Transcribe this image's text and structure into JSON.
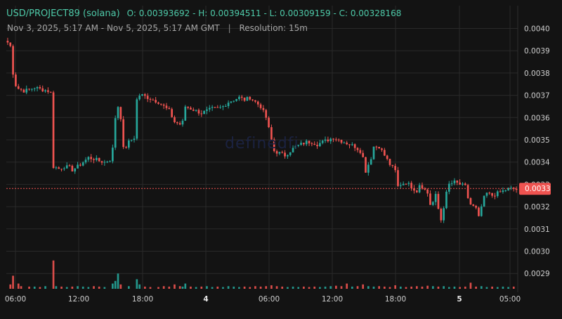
{
  "header": {
    "symbol": "USD/PROJECT89 (solana)",
    "ohlc": "O: 0.00393692 - H: 0.00394511 - L: 0.00309159 - C: 0.00328168",
    "range": "Nov 3, 2025, 5:17 AM - Nov 5, 2025, 5:17 AM GMT",
    "separator": "|",
    "resolution": "Resolution: 15m"
  },
  "watermark": "definedfi",
  "colors": {
    "up": "#26a69a",
    "down": "#ef5350",
    "background": "#131313",
    "grid": "#2a2a2a",
    "price_tag": "#ef5350"
  },
  "chart_data": {
    "type": "candlestick",
    "ylim": [
      0.00284,
      0.0041
    ],
    "y_ticks": [
      "0.0040",
      "0.0039",
      "0.0038",
      "0.0037",
      "0.0036",
      "0.0035",
      "0.0034",
      "0.0033",
      "0.0032",
      "0.0031",
      "0.0030",
      "0.0029"
    ],
    "x_ticks": [
      "06:00",
      "12:00",
      "18:00",
      "4",
      "06:00",
      "12:00",
      "18:00",
      "5",
      "05:00"
    ],
    "last_price": 0.00328168,
    "last_price_label": "0.0033",
    "grid": true,
    "ohlc_path": [
      [
        0,
        0.003937
      ],
      [
        1,
        0.00392
      ],
      [
        2,
        0.0038
      ],
      [
        3,
        0.003745
      ],
      [
        4,
        0.00373
      ],
      [
        6,
        0.00372
      ],
      [
        8,
        0.003725
      ],
      [
        10,
        0.003735
      ],
      [
        13,
        0.003725
      ],
      [
        15,
        0.00372
      ],
      [
        16,
        0.00371
      ],
      [
        17,
        0.00338
      ],
      [
        19,
        0.00337
      ],
      [
        21,
        0.00338
      ],
      [
        23,
        0.003375
      ],
      [
        24,
        0.003365
      ],
      [
        26,
        0.00338
      ],
      [
        28,
        0.0034
      ],
      [
        30,
        0.00342
      ],
      [
        32,
        0.003415
      ],
      [
        34,
        0.003405
      ],
      [
        36,
        0.0034
      ],
      [
        38,
        0.00341
      ],
      [
        39,
        0.00346
      ],
      [
        40,
        0.0036
      ],
      [
        41,
        0.00365
      ],
      [
        42,
        0.0036
      ],
      [
        43,
        0.00346
      ],
      [
        44,
        0.00347
      ],
      [
        45,
        0.00349
      ],
      [
        46,
        0.0035
      ],
      [
        47,
        0.00351
      ],
      [
        48,
        0.00368
      ],
      [
        49,
        0.0037
      ],
      [
        50,
        0.0037
      ],
      [
        52,
        0.00369
      ],
      [
        54,
        0.00368
      ],
      [
        56,
        0.00367
      ],
      [
        58,
        0.00365
      ],
      [
        60,
        0.00363
      ],
      [
        62,
        0.00358
      ],
      [
        64,
        0.00357
      ],
      [
        65,
        0.00358
      ],
      [
        66,
        0.00365
      ],
      [
        68,
        0.00364
      ],
      [
        70,
        0.00363
      ],
      [
        72,
        0.00362
      ],
      [
        74,
        0.00363
      ],
      [
        76,
        0.00364
      ],
      [
        78,
        0.00364
      ],
      [
        80,
        0.00365
      ],
      [
        82,
        0.00367
      ],
      [
        84,
        0.00368
      ],
      [
        86,
        0.00369
      ],
      [
        88,
        0.00368
      ],
      [
        90,
        0.00369
      ],
      [
        92,
        0.00367
      ],
      [
        94,
        0.00365
      ],
      [
        96,
        0.0036
      ],
      [
        98,
        0.0035
      ],
      [
        99,
        0.00345
      ],
      [
        101,
        0.00344
      ],
      [
        103,
        0.00343
      ],
      [
        105,
        0.00345
      ],
      [
        107,
        0.00347
      ],
      [
        109,
        0.00348
      ],
      [
        111,
        0.00349
      ],
      [
        113,
        0.00349
      ],
      [
        115,
        0.00348
      ],
      [
        117,
        0.00349
      ],
      [
        119,
        0.0035
      ],
      [
        121,
        0.00351
      ],
      [
        123,
        0.0035
      ],
      [
        125,
        0.00349
      ],
      [
        127,
        0.00348
      ],
      [
        129,
        0.00347
      ],
      [
        131,
        0.00345
      ],
      [
        132,
        0.00342
      ],
      [
        133,
        0.00336
      ],
      [
        134,
        0.00339
      ],
      [
        135,
        0.00342
      ],
      [
        136,
        0.00347
      ],
      [
        138,
        0.00347
      ],
      [
        140,
        0.00343
      ],
      [
        142,
        0.00339
      ],
      [
        144,
        0.00336
      ],
      [
        145,
        0.00329
      ],
      [
        146,
        0.0033
      ],
      [
        148,
        0.00331
      ],
      [
        150,
        0.00329
      ],
      [
        152,
        0.00327
      ],
      [
        153,
        0.0033
      ],
      [
        154,
        0.00329
      ],
      [
        156,
        0.00326
      ],
      [
        157,
        0.00321
      ],
      [
        158,
        0.00322
      ],
      [
        159,
        0.00325
      ],
      [
        160,
        0.00319
      ],
      [
        161,
        0.00314
      ],
      [
        162,
        0.0032
      ],
      [
        163,
        0.00326
      ],
      [
        164,
        0.0033
      ],
      [
        166,
        0.00331
      ],
      [
        168,
        0.0033
      ],
      [
        170,
        0.00329
      ],
      [
        171,
        0.00324
      ],
      [
        172,
        0.00321
      ],
      [
        174,
        0.00319
      ],
      [
        175,
        0.00315
      ],
      [
        176,
        0.0032
      ],
      [
        177,
        0.00324
      ],
      [
        178,
        0.00326
      ],
      [
        180,
        0.00325
      ],
      [
        182,
        0.00326
      ],
      [
        184,
        0.00327
      ],
      [
        186,
        0.00328
      ],
      [
        188,
        0.00328
      ]
    ],
    "volume": [
      [
        1,
        0.1
      ],
      [
        2,
        0.3
      ],
      [
        4,
        0.12
      ],
      [
        5,
        0.06
      ],
      [
        8,
        0.05
      ],
      [
        10,
        0.05
      ],
      [
        12,
        0.04
      ],
      [
        14,
        0.06
      ],
      [
        17,
        0.65
      ],
      [
        18,
        0.06
      ],
      [
        20,
        0.05
      ],
      [
        22,
        0.04
      ],
      [
        24,
        0.05
      ],
      [
        26,
        0.06
      ],
      [
        28,
        0.05
      ],
      [
        30,
        0.04
      ],
      [
        32,
        0.06
      ],
      [
        34,
        0.05
      ],
      [
        36,
        0.04
      ],
      [
        39,
        0.12
      ],
      [
        40,
        0.18
      ],
      [
        41,
        0.35
      ],
      [
        42,
        0.1
      ],
      [
        45,
        0.06
      ],
      [
        48,
        0.22
      ],
      [
        49,
        0.1
      ],
      [
        51,
        0.05
      ],
      [
        53,
        0.04
      ],
      [
        56,
        0.04
      ],
      [
        58,
        0.06
      ],
      [
        60,
        0.05
      ],
      [
        62,
        0.1
      ],
      [
        64,
        0.06
      ],
      [
        65,
        0.05
      ],
      [
        66,
        0.12
      ],
      [
        68,
        0.05
      ],
      [
        70,
        0.04
      ],
      [
        72,
        0.05
      ],
      [
        74,
        0.06
      ],
      [
        76,
        0.04
      ],
      [
        78,
        0.05
      ],
      [
        80,
        0.04
      ],
      [
        82,
        0.06
      ],
      [
        84,
        0.05
      ],
      [
        86,
        0.04
      ],
      [
        88,
        0.05
      ],
      [
        90,
        0.04
      ],
      [
        92,
        0.06
      ],
      [
        94,
        0.05
      ],
      [
        96,
        0.06
      ],
      [
        98,
        0.08
      ],
      [
        100,
        0.06
      ],
      [
        102,
        0.05
      ],
      [
        104,
        0.04
      ],
      [
        106,
        0.05
      ],
      [
        108,
        0.04
      ],
      [
        110,
        0.05
      ],
      [
        112,
        0.04
      ],
      [
        114,
        0.05
      ],
      [
        116,
        0.04
      ],
      [
        118,
        0.05
      ],
      [
        120,
        0.06
      ],
      [
        122,
        0.07
      ],
      [
        124,
        0.06
      ],
      [
        126,
        0.12
      ],
      [
        128,
        0.05
      ],
      [
        130,
        0.06
      ],
      [
        132,
        0.1
      ],
      [
        134,
        0.06
      ],
      [
        136,
        0.05
      ],
      [
        138,
        0.06
      ],
      [
        140,
        0.05
      ],
      [
        142,
        0.04
      ],
      [
        144,
        0.08
      ],
      [
        146,
        0.05
      ],
      [
        148,
        0.04
      ],
      [
        150,
        0.05
      ],
      [
        152,
        0.06
      ],
      [
        154,
        0.05
      ],
      [
        156,
        0.07
      ],
      [
        158,
        0.06
      ],
      [
        160,
        0.05
      ],
      [
        162,
        0.06
      ],
      [
        164,
        0.04
      ],
      [
        166,
        0.05
      ],
      [
        168,
        0.04
      ],
      [
        170,
        0.05
      ],
      [
        172,
        0.14
      ],
      [
        174,
        0.05
      ],
      [
        176,
        0.06
      ],
      [
        178,
        0.04
      ],
      [
        180,
        0.05
      ],
      [
        182,
        0.04
      ],
      [
        184,
        0.05
      ],
      [
        186,
        0.04
      ],
      [
        188,
        0.05
      ]
    ],
    "series": [
      {
        "name": "",
        "values": []
      }
    ]
  }
}
